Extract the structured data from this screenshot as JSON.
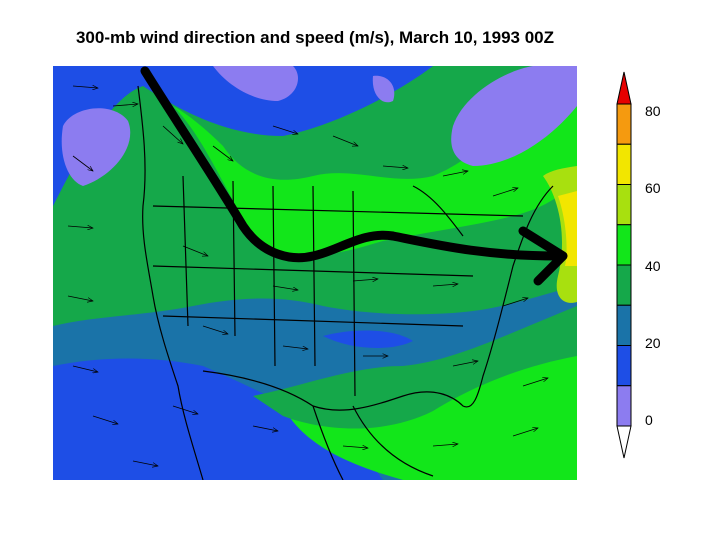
{
  "title": "300-mb wind direction and speed (m/s), March 10, 1993  00Z",
  "colorbar": {
    "labels": [
      "80",
      "60",
      "40",
      "20",
      "0"
    ],
    "levels": [
      {
        "min": null,
        "max": 0,
        "color": "#ffffff",
        "shape": "triangle-bottom"
      },
      {
        "min": 0,
        "max": 10,
        "color": "#8c7cf0"
      },
      {
        "min": 10,
        "max": 20,
        "color": "#1e4ee6"
      },
      {
        "min": 20,
        "max": 30,
        "color": "#1a73a8"
      },
      {
        "min": 30,
        "max": 40,
        "color": "#15a84a"
      },
      {
        "min": 40,
        "max": 50,
        "color": "#12e61a"
      },
      {
        "min": 50,
        "max": 60,
        "color": "#a8e00f"
      },
      {
        "min": 60,
        "max": 70,
        "color": "#f2e600"
      },
      {
        "min": 70,
        "max": 80,
        "color": "#f59a0f"
      },
      {
        "min": 80,
        "max": null,
        "color": "#e60000",
        "shape": "triangle-top"
      }
    ]
  },
  "jet_stream_arrow": {
    "color": "#000000",
    "meaning": "jet stream path"
  }
}
